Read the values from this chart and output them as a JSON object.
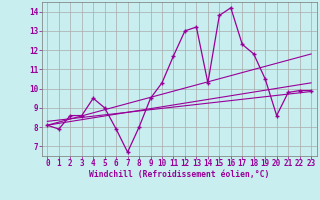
{
  "xlabel": "Windchill (Refroidissement éolien,°C)",
  "background_color": "#c8eef0",
  "grid_color": "#aaaaaa",
  "line_color": "#990099",
  "xlim": [
    -0.5,
    23.5
  ],
  "ylim": [
    6.5,
    14.5
  ],
  "yticks": [
    7,
    8,
    9,
    10,
    11,
    12,
    13,
    14
  ],
  "xticks": [
    0,
    1,
    2,
    3,
    4,
    5,
    6,
    7,
    8,
    9,
    10,
    11,
    12,
    13,
    14,
    15,
    16,
    17,
    18,
    19,
    20,
    21,
    22,
    23
  ],
  "main_x": [
    0,
    1,
    2,
    3,
    4,
    5,
    6,
    7,
    8,
    9,
    10,
    11,
    12,
    13,
    14,
    15,
    16,
    17,
    18,
    19,
    20,
    21,
    22,
    23
  ],
  "main_y": [
    8.1,
    7.9,
    8.6,
    8.6,
    9.5,
    9.0,
    7.9,
    6.7,
    8.0,
    9.5,
    10.3,
    11.7,
    13.0,
    13.2,
    10.3,
    13.8,
    14.2,
    12.3,
    11.8,
    10.5,
    8.6,
    9.8,
    9.9,
    9.9
  ],
  "trend1_x": [
    0,
    23
  ],
  "trend1_y": [
    8.1,
    11.8
  ],
  "trend2_x": [
    0,
    23
  ],
  "trend2_y": [
    8.1,
    10.3
  ],
  "trend3_x": [
    0,
    23
  ],
  "trend3_y": [
    8.3,
    9.85
  ],
  "tick_fontsize": 5.5,
  "xlabel_fontsize": 5.8
}
